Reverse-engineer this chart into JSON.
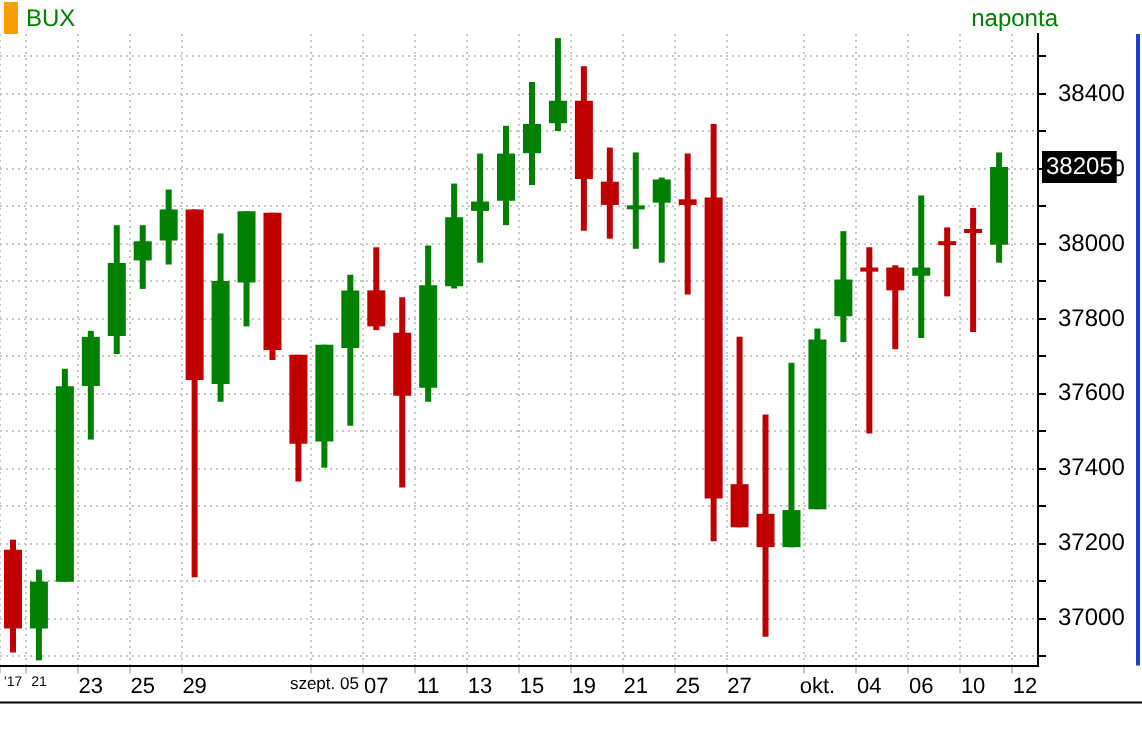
{
  "chart_data": {
    "type": "candlestick",
    "title": "BUX",
    "subtitle": "naponta",
    "categories": [
      "’17",
      "21",
      null,
      "23",
      null,
      "25",
      null,
      "29",
      null,
      null,
      null,
      null,
      "szept. 05",
      null,
      "07",
      null,
      "11",
      null,
      "13",
      null,
      "15",
      null,
      "19",
      null,
      "21",
      null,
      "25",
      null,
      "27",
      null,
      null,
      "okt.",
      null,
      "04",
      null,
      "06",
      null,
      "10",
      null,
      "12"
    ],
    "ohlc": [
      [
        37184,
        37211,
        36910,
        36974
      ],
      [
        36974,
        37131,
        36889,
        37099
      ],
      [
        37099,
        37667,
        37099,
        37620
      ],
      [
        37621,
        37768,
        37478,
        37752
      ],
      [
        37754,
        38050,
        37706,
        37949
      ],
      [
        37956,
        38050,
        37880,
        38007
      ],
      [
        38009,
        38145,
        37945,
        38092
      ],
      [
        38092,
        38092,
        37111,
        37637
      ],
      [
        37626,
        38028,
        37579,
        37901
      ],
      [
        37897,
        38087,
        37780,
        38087
      ],
      [
        38083,
        38083,
        37690,
        37717
      ],
      [
        37704,
        37704,
        37366,
        37467
      ],
      [
        37473,
        37731,
        37403,
        37731
      ],
      [
        37722,
        37918,
        37515,
        37876
      ],
      [
        37876,
        37991,
        37770,
        37780
      ],
      [
        37763,
        37858,
        37350,
        37595
      ],
      [
        37616,
        37996,
        37579,
        37890
      ],
      [
        37887,
        38161,
        37881,
        38071
      ],
      [
        38088,
        38241,
        37950,
        38113
      ],
      [
        38115,
        38315,
        38050,
        38241
      ],
      [
        38242,
        38432,
        38157,
        38320
      ],
      [
        38322,
        38549,
        38301,
        38382
      ],
      [
        38382,
        38474,
        38035,
        38173
      ],
      [
        38166,
        38257,
        38014,
        38104
      ],
      [
        38096,
        38244,
        37987,
        38099
      ],
      [
        38110,
        38177,
        37950,
        38172
      ],
      [
        38119,
        38241,
        37865,
        38104
      ],
      [
        38124,
        38320,
        37207,
        37321
      ],
      [
        37359,
        37752,
        37244,
        37244
      ],
      [
        37280,
        37545,
        36952,
        37191
      ],
      [
        37191,
        37683,
        37191,
        37290
      ],
      [
        37292,
        37774,
        37292,
        37745
      ],
      [
        37807,
        38034,
        37738,
        37905
      ],
      [
        37937,
        37991,
        37494,
        37926
      ],
      [
        37937,
        37943,
        37719,
        37876
      ],
      [
        37915,
        38129,
        37749,
        37937
      ],
      [
        38006,
        38044,
        37860,
        37998
      ],
      [
        38039,
        38096,
        37765,
        38030
      ],
      [
        37998,
        38244,
        37950,
        38205
      ],
      null
    ],
    "colors": [
      "#c00000",
      "#008000",
      "#008000",
      "#008000",
      "#008000",
      "#008000",
      "#008000",
      "#c00000",
      "#008000",
      "#008000",
      "#c00000",
      "#c00000",
      "#008000",
      "#008000",
      "#c00000",
      "#c00000",
      "#008000",
      "#008000",
      "#008000",
      "#008000",
      "#008000",
      "#008000",
      "#c00000",
      "#c00000",
      "#008000",
      "#008000",
      "#c00000",
      "#c00000",
      "#c00000",
      "#c00000",
      "#008000",
      "#008000",
      "#008000",
      "#c00000",
      "#c00000",
      "#008000",
      "#c00000",
      "#c00000",
      "#008000",
      null
    ],
    "ylim": [
      36875,
      38560
    ],
    "yticks": [
      {
        "value": 36900,
        "label": null
      },
      37000,
      {
        "value": 37100,
        "label": null
      },
      37200,
      {
        "value": 37300,
        "label": null
      },
      37400,
      {
        "value": 37500,
        "label": null
      },
      37600,
      {
        "value": 37700,
        "label": null
      },
      37800,
      {
        "value": 37900,
        "label": null
      },
      38000,
      {
        "value": 38100,
        "label": null
      },
      38200,
      {
        "value": 38300,
        "label": null
      },
      38400,
      {
        "value": 38500,
        "label": null
      }
    ],
    "grid": true,
    "annotations": [
      {
        "text": "38205",
        "y": 38205
      }
    ]
  }
}
